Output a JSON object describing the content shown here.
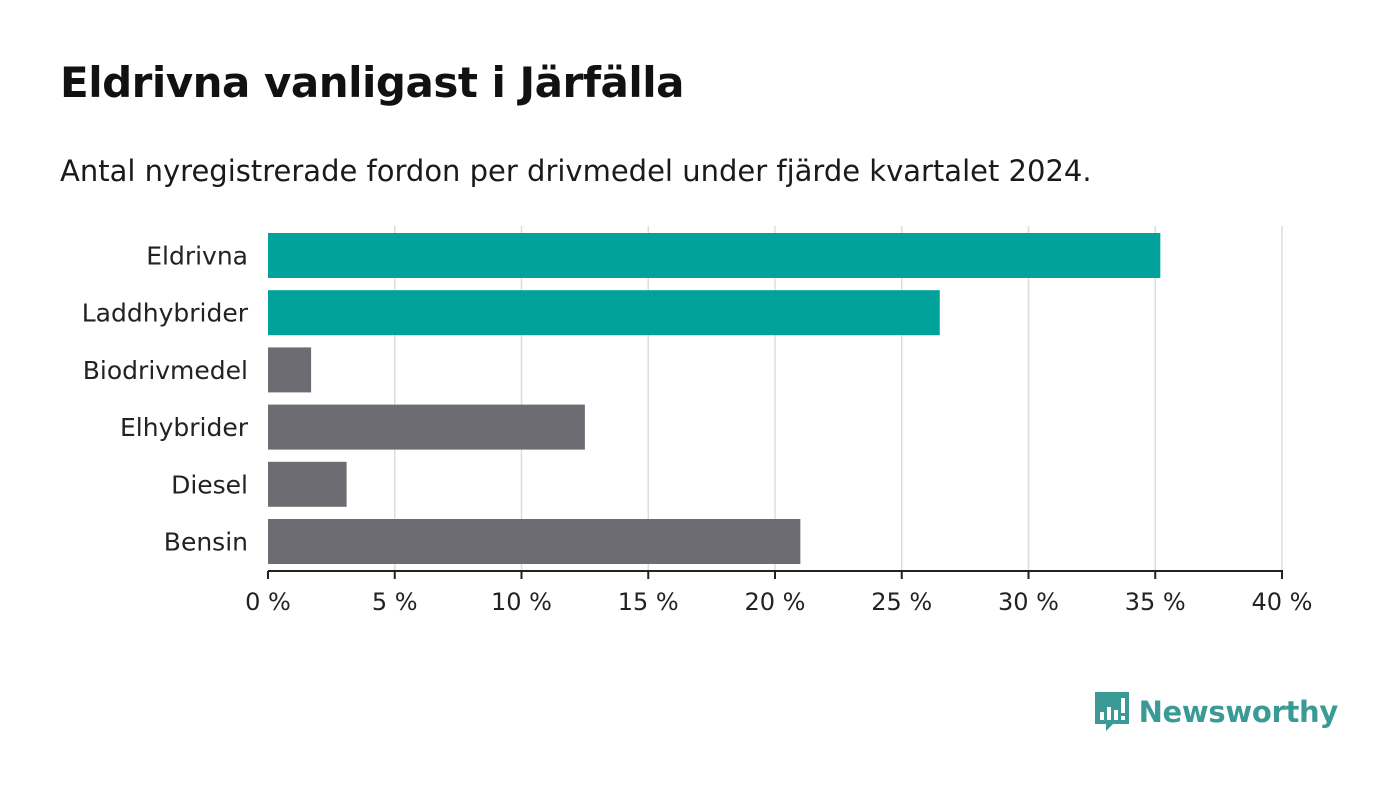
{
  "header": {
    "title": "Eldrivna vanligast i Järfälla",
    "subtitle": "Antal nyregistrerade fordon per drivmedel under fjärde kvartalet 2024."
  },
  "chart_data": {
    "type": "bar",
    "orientation": "horizontal",
    "title": "Eldrivna vanligast i Järfälla",
    "subtitle": "Antal nyregistrerade fordon per drivmedel under fjärde kvartalet 2024.",
    "categories": [
      "Eldrivna",
      "Laddhybrider",
      "Biodrivmedel",
      "Elhybrider",
      "Diesel",
      "Bensin"
    ],
    "values": [
      35.2,
      26.5,
      1.7,
      12.5,
      3.1,
      21.0
    ],
    "highlight": [
      true,
      true,
      false,
      false,
      false,
      false
    ],
    "xlim": [
      0,
      40
    ],
    "xticks": [
      0,
      5,
      10,
      15,
      20,
      25,
      30,
      35,
      40
    ],
    "tick_suffix": " %",
    "xlabel": "",
    "ylabel": "",
    "grid": true,
    "legend": "none"
  },
  "colors": {
    "highlight": "#00a29a",
    "default": "#6e6c73",
    "grid": "#dddddd",
    "axis": "#222222",
    "brand": "#3a9b96"
  },
  "brand": {
    "name": "Newsworthy",
    "icon": "bar-chart-speech-bubble-icon"
  }
}
